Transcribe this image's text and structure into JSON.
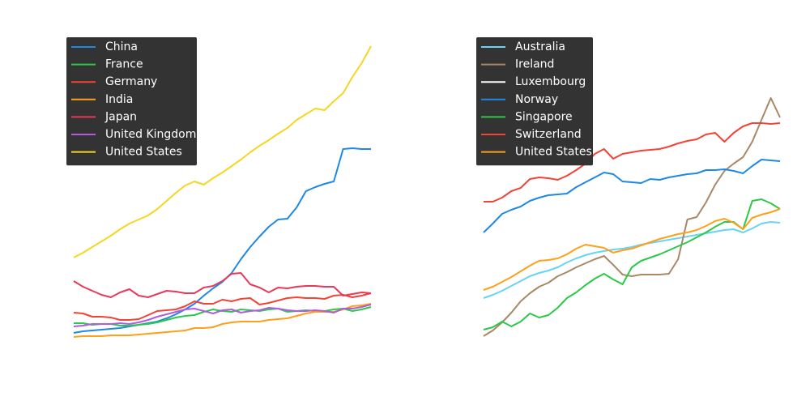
{
  "chart_data": [
    {
      "type": "line",
      "ylim": [
        0,
        40
      ],
      "series": [
        {
          "name": "China",
          "color": "#1e88e5",
          "values": [
            2.9,
            3.1,
            3.2,
            3.3,
            3.4,
            3.5,
            3.7,
            3.9,
            4.1,
            4.3,
            4.7,
            5.2,
            5.8,
            6.5,
            7.5,
            8.4,
            9.2,
            10.3,
            12.0,
            13.5,
            14.8,
            16.0,
            16.9,
            17.0,
            18.4,
            20.4,
            20.9,
            21.3,
            21.6,
            25.6,
            25.7,
            25.6,
            25.6
          ]
        },
        {
          "name": "France",
          "color": "#2bc94a",
          "values": [
            4.1,
            4.1,
            3.9,
            4.0,
            4.0,
            3.8,
            3.8,
            3.9,
            4.0,
            4.2,
            4.5,
            4.8,
            5.0,
            5.1,
            5.5,
            5.8,
            5.6,
            5.5,
            5.8,
            5.7,
            5.6,
            5.8,
            5.9,
            5.5,
            5.6,
            5.7,
            5.6,
            5.6,
            5.8,
            5.9,
            5.6,
            5.8,
            6.1
          ]
        },
        {
          "name": "Germany",
          "color": "#f44336",
          "values": [
            5.4,
            5.3,
            4.9,
            4.9,
            4.8,
            4.5,
            4.5,
            4.6,
            5.1,
            5.6,
            5.7,
            5.8,
            6.2,
            6.8,
            6.5,
            6.5,
            7.0,
            6.8,
            7.1,
            7.2,
            6.4,
            6.6,
            6.9,
            7.2,
            7.3,
            7.2,
            7.2,
            7.1,
            7.5,
            7.6,
            7.3,
            7.5,
            7.8
          ]
        },
        {
          "name": "India",
          "color": "#ff9f1a",
          "values": [
            2.4,
            2.5,
            2.5,
            2.5,
            2.6,
            2.6,
            2.6,
            2.7,
            2.8,
            2.9,
            3.0,
            3.1,
            3.2,
            3.5,
            3.5,
            3.6,
            4.0,
            4.2,
            4.3,
            4.3,
            4.3,
            4.5,
            4.6,
            4.7,
            5.0,
            5.3,
            5.5,
            5.5,
            5.5,
            5.8,
            6.2,
            6.3,
            6.5
          ]
        },
        {
          "name": "Japan",
          "color": "#e8395a",
          "values": [
            9.3,
            8.6,
            8.1,
            7.6,
            7.3,
            7.9,
            8.3,
            7.5,
            7.3,
            7.7,
            8.1,
            8.0,
            7.8,
            7.8,
            8.5,
            8.7,
            9.3,
            10.2,
            10.3,
            8.9,
            8.5,
            7.9,
            8.5,
            8.4,
            8.6,
            8.7,
            8.7,
            8.6,
            8.6,
            7.5,
            7.7,
            7.9,
            7.8
          ]
        },
        {
          "name": "United Kingdom",
          "color": "#b25be0",
          "values": [
            3.7,
            3.8,
            4.0,
            4.0,
            4.0,
            4.1,
            4.0,
            4.2,
            4.5,
            4.9,
            5.2,
            5.5,
            5.8,
            5.9,
            5.6,
            5.3,
            5.7,
            5.8,
            5.4,
            5.6,
            5.7,
            6.0,
            5.9,
            5.7,
            5.6,
            5.6,
            5.7,
            5.6,
            5.4,
            5.9,
            5.9,
            6.1,
            6.4
          ]
        },
        {
          "name": "United States",
          "color": "#f5d623",
          "values": [
            12.2,
            12.8,
            13.5,
            14.2,
            14.9,
            15.7,
            16.4,
            16.9,
            17.4,
            18.2,
            19.2,
            20.2,
            21.1,
            21.6,
            21.2,
            22.0,
            22.7,
            23.5,
            24.3,
            25.2,
            26.0,
            26.7,
            27.5,
            28.2,
            29.2,
            29.9,
            30.6,
            30.4,
            31.5,
            32.5,
            34.5,
            36.2,
            38.3
          ]
        }
      ]
    },
    {
      "type": "line",
      "ylim": [
        0,
        40
      ],
      "series": [
        {
          "name": "Australia",
          "color": "#66d4f5",
          "values": [
            7.2,
            7.6,
            8.1,
            8.7,
            9.3,
            9.9,
            10.3,
            10.6,
            11.0,
            11.6,
            12.1,
            12.5,
            12.8,
            13.0,
            13.2,
            13.3,
            13.5,
            13.8,
            14.0,
            14.2,
            14.4,
            14.6,
            14.8,
            15.0,
            15.2,
            15.4,
            15.6,
            15.7,
            15.3,
            15.8,
            16.4,
            16.6,
            16.5
          ]
        },
        {
          "name": "Ireland",
          "color": "#a88866",
          "values": [
            2.5,
            3.2,
            4.2,
            5.4,
            6.8,
            7.8,
            8.6,
            9.1,
            9.9,
            10.4,
            11.0,
            11.5,
            12.0,
            12.4,
            11.3,
            10.1,
            9.9,
            10.1,
            10.1,
            10.1,
            10.2,
            12.0,
            16.9,
            17.2,
            19.0,
            21.2,
            22.9,
            23.8,
            24.6,
            26.5,
            29.2,
            31.9,
            29.5
          ]
        },
        {
          "name": "Luxembourg",
          "color": "#ffffff",
          "values": [
            null,
            null,
            null,
            null,
            null,
            null,
            null,
            null,
            null,
            null,
            null,
            null,
            null,
            null,
            null,
            null,
            null,
            null,
            null,
            null,
            null,
            null,
            null,
            null,
            null,
            null,
            null,
            null,
            null,
            null,
            null,
            null,
            null
          ]
        },
        {
          "name": "Norway",
          "color": "#1e88e5",
          "values": [
            15.3,
            16.4,
            17.6,
            18.1,
            18.5,
            19.2,
            19.6,
            19.9,
            20.0,
            20.1,
            20.9,
            21.5,
            22.1,
            22.7,
            22.5,
            21.6,
            21.5,
            21.4,
            21.9,
            21.8,
            22.1,
            22.3,
            22.5,
            22.6,
            23.0,
            23.0,
            23.1,
            22.9,
            22.6,
            23.5,
            24.3,
            24.2,
            24.1
          ]
        },
        {
          "name": "Singapore",
          "color": "#2bc94a",
          "values": [
            3.3,
            3.6,
            4.3,
            3.7,
            4.3,
            5.3,
            4.8,
            5.1,
            6.0,
            7.2,
            7.9,
            8.8,
            9.6,
            10.2,
            9.5,
            8.9,
            11.0,
            11.8,
            12.2,
            12.6,
            13.1,
            13.6,
            14.1,
            14.7,
            15.3,
            16.0,
            16.6,
            16.6,
            15.7,
            19.2,
            19.4,
            18.9,
            18.2
          ]
        },
        {
          "name": "Switzerland",
          "color": "#f44336",
          "values": [
            19.1,
            19.1,
            19.6,
            20.4,
            20.8,
            21.9,
            22.1,
            22.0,
            21.8,
            22.3,
            23.0,
            23.8,
            25.0,
            25.6,
            24.4,
            25.0,
            25.2,
            25.4,
            25.5,
            25.6,
            25.9,
            26.3,
            26.6,
            26.8,
            27.4,
            27.6,
            26.5,
            27.6,
            28.4,
            28.8,
            28.8,
            28.7,
            28.8
          ]
        },
        {
          "name": "United States",
          "color": "#ff9f1a",
          "values": [
            8.2,
            8.6,
            9.2,
            9.8,
            10.5,
            11.2,
            11.8,
            11.9,
            12.1,
            12.6,
            13.3,
            13.8,
            13.6,
            13.4,
            12.8,
            13.1,
            13.3,
            13.7,
            14.1,
            14.5,
            14.8,
            15.1,
            15.3,
            15.6,
            16.1,
            16.7,
            17.0,
            16.5,
            15.7,
            17.1,
            17.5,
            17.8,
            18.2
          ]
        }
      ]
    }
  ]
}
